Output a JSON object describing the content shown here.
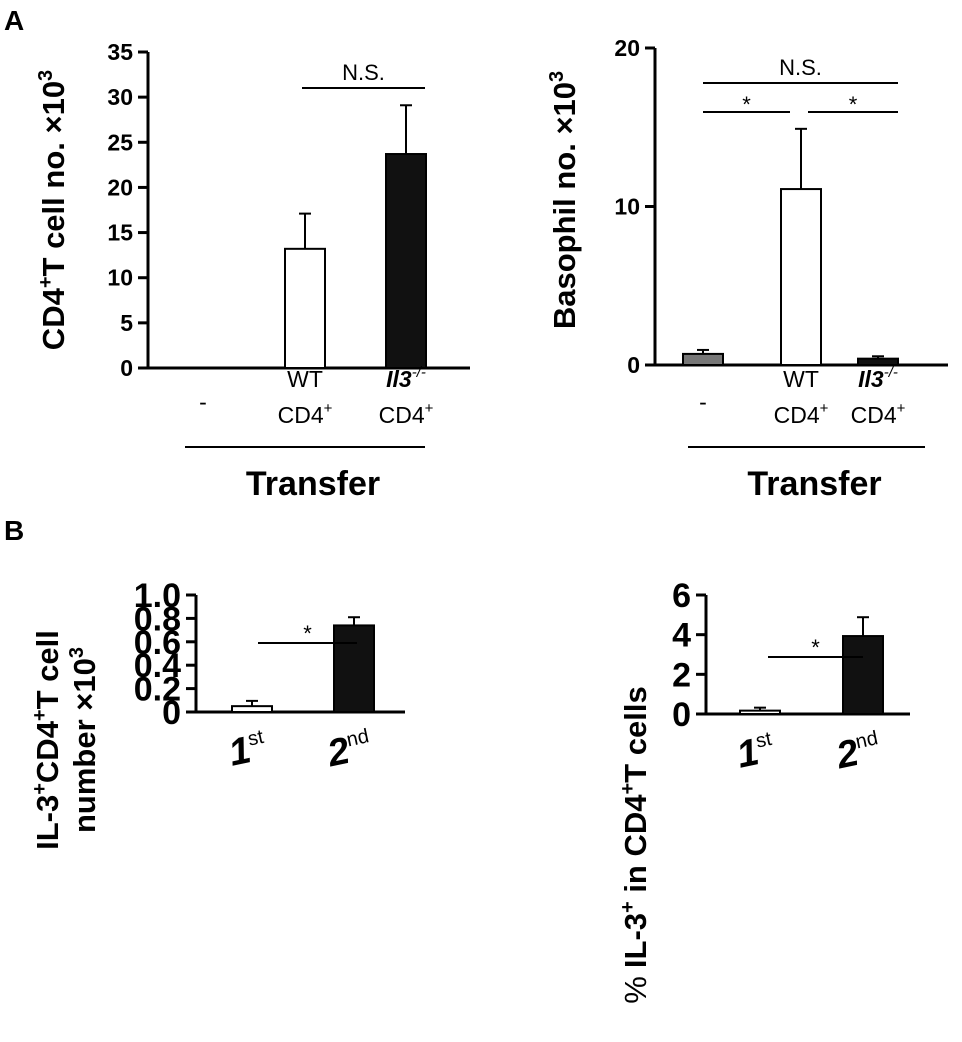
{
  "panels": {
    "a": "A",
    "b": "B"
  },
  "chart_data": [
    {
      "type": "bar",
      "ylabel": "CD4",
      "ylabel_sup": "+",
      "ylabel_rest": "T cell no. ×10",
      "ylabel_exp": "3",
      "ylim": [
        0,
        35
      ],
      "yticks": [
        "0",
        "5",
        "10",
        "15",
        "20",
        "25",
        "30",
        "35"
      ],
      "categories": [
        "-",
        "WT CD4+",
        "Il3-/- CD4+"
      ],
      "values": [
        0,
        13.2,
        23.7
      ],
      "errors": [
        0,
        3.9,
        5.4
      ],
      "bar_colors": [
        "#ffffff",
        "#ffffff",
        "#111111"
      ],
      "group_label": "Transfer",
      "significance": [
        {
          "from": 1,
          "to": 2,
          "label": "N.S."
        }
      ]
    },
    {
      "type": "bar",
      "ylabel": "Basophil no. ×10",
      "ylabel_exp": "3",
      "ylim": [
        0,
        20
      ],
      "yticks": [
        "0",
        "10",
        "20"
      ],
      "categories": [
        "-",
        "WT CD4+",
        "Il3-/- CD4+"
      ],
      "values": [
        0.7,
        11.1,
        0.4
      ],
      "errors": [
        0.25,
        3.8,
        0.15
      ],
      "bar_colors": [
        "#777777",
        "#ffffff",
        "#111111"
      ],
      "group_label": "Transfer",
      "significance": [
        {
          "from": 0,
          "to": 2,
          "label": "N.S."
        },
        {
          "from": 0,
          "to": 1,
          "label": "*"
        },
        {
          "from": 1,
          "to": 2,
          "label": "*"
        }
      ]
    },
    {
      "type": "bar",
      "ylabel_line1_pre": "IL-3",
      "ylabel_line1_sup": "+",
      "ylabel_line1_mid": "CD4",
      "ylabel_line1_sup2": "+",
      "ylabel_line1_post": "T cell",
      "ylabel_line2": "number ×10",
      "ylabel_exp": "3",
      "ylim": [
        0,
        1.0
      ],
      "yticks": [
        "0",
        "0.2",
        "0.4",
        "0.6",
        "0.8",
        "1.0"
      ],
      "categories": [
        "1st",
        "2nd"
      ],
      "values": [
        0.05,
        0.74
      ],
      "errors": [
        0.045,
        0.07
      ],
      "bar_colors": [
        "#ffffff",
        "#111111"
      ],
      "significance": [
        {
          "from": 0,
          "to": 1,
          "label": "*"
        }
      ]
    },
    {
      "type": "bar",
      "ylabel_pct": "%",
      "ylabel_pre": "IL-3",
      "ylabel_sup": "+",
      "ylabel_mid": " in CD4",
      "ylabel_sup2": "+",
      "ylabel_post": "T cells",
      "ylim": [
        0,
        6
      ],
      "yticks": [
        "0",
        "2",
        "4",
        "6"
      ],
      "categories": [
        "1st",
        "2nd"
      ],
      "values": [
        0.17,
        3.93
      ],
      "errors": [
        0.15,
        0.95
      ],
      "bar_colors": [
        "#ffffff",
        "#111111"
      ],
      "significance": [
        {
          "from": 0,
          "to": 1,
          "label": "*"
        }
      ]
    }
  ]
}
